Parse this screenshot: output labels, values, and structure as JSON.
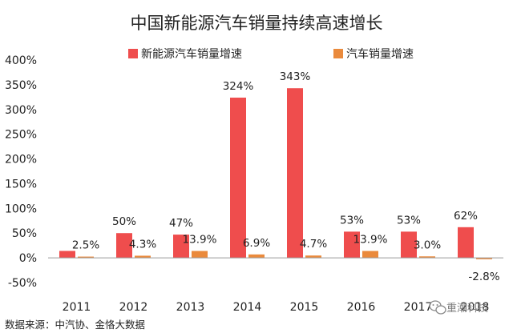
{
  "colors": {
    "series_ev": "#ef4d4d",
    "series_auto": "#ea8a3c",
    "axis": "#9a9a9a",
    "text": "#222222"
  },
  "source_text": "数据来源：中汽协、金恪大数据",
  "watermark_text": "重潮科技",
  "watermark_icon": "wechat-icon",
  "chart_data": {
    "type": "bar",
    "title": "中国新能源汽车销量持续高速增长",
    "categories": [
      "2011",
      "2012",
      "2013",
      "2014",
      "2015",
      "2016",
      "2017",
      "2018"
    ],
    "series": [
      {
        "name": "新能源汽车销量增速",
        "values": [
          14,
          50,
          47,
          324,
          343,
          53,
          53,
          62
        ],
        "labels": [
          "",
          "50%",
          "47%",
          "324%",
          "343%",
          "53%",
          "53%",
          "62%"
        ]
      },
      {
        "name": "汽车销量增速",
        "values": [
          2.5,
          4.3,
          13.9,
          6.9,
          4.7,
          13.9,
          3.0,
          -2.8
        ],
        "labels": [
          "2.5%",
          "4.3%",
          "13.9%",
          "6.9%",
          "4.7%",
          "13.9%",
          "3.0%",
          "-2.8%"
        ]
      }
    ],
    "ylim": [
      -50,
      400
    ],
    "yticks": [
      -50,
      0,
      50,
      100,
      150,
      200,
      250,
      300,
      350,
      400
    ],
    "ytick_labels": [
      "-50%",
      "0%",
      "50%",
      "100%",
      "150%",
      "200%",
      "250%",
      "300%",
      "350%",
      "400%"
    ],
    "legend_position": "top-center",
    "grid": false
  }
}
